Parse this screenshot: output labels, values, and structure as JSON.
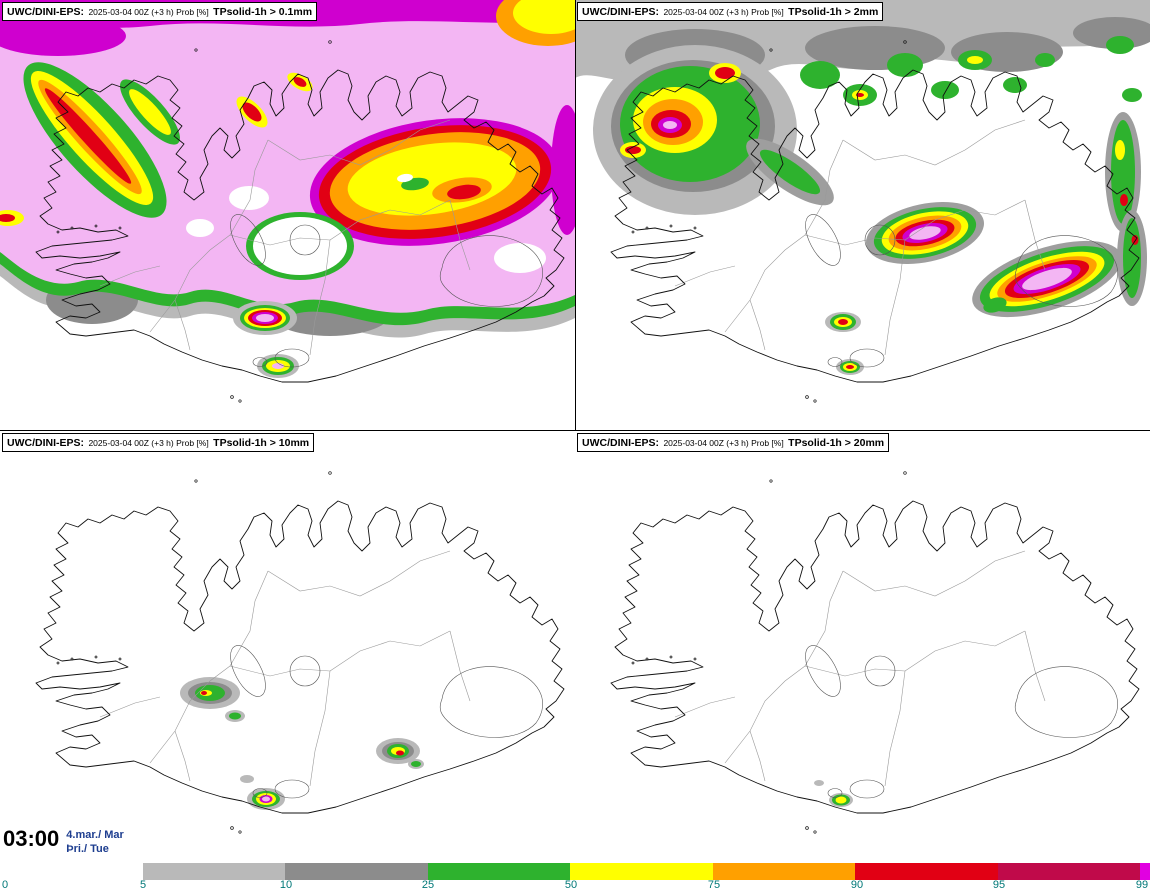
{
  "panels": [
    {
      "model": "UWC/DINI-EPS:",
      "run": "2025-03-04 00Z (+3 h) Prob [%]",
      "param": "TPsolid-1h > 0.1mm"
    },
    {
      "model": "UWC/DINI-EPS:",
      "run": "2025-03-04 00Z (+3 h) Prob [%]",
      "param": "TPsolid-1h > 2mm"
    },
    {
      "model": "UWC/DINI-EPS:",
      "run": "2025-03-04 00Z (+3 h) Prob [%]",
      "param": "TPsolid-1h > 10mm"
    },
    {
      "model": "UWC/DINI-EPS:",
      "run": "2025-03-04 00Z (+3 h) Prob [%]",
      "param": "TPsolid-1h > 20mm"
    }
  ],
  "footer": {
    "time": "03:00",
    "date_line1": "4.mar./ Mar",
    "date_line2": "Þri./ Tue"
  },
  "legend": {
    "unit": "Prob [%]",
    "ticks": [
      "0",
      "5",
      "10",
      "25",
      "50",
      "75",
      "90",
      "95",
      "99"
    ],
    "segments": [
      {
        "range": "5-10",
        "color": "#b9b9b9"
      },
      {
        "range": "10-25",
        "color": "#8c8c8c"
      },
      {
        "range": "25-50",
        "color": "#2eb22e"
      },
      {
        "range": "50-75",
        "color": "#ffff00"
      },
      {
        "range": "75-90",
        "color": "#ffa000"
      },
      {
        "range": "90-95",
        "color": "#e10014"
      },
      {
        "range": "95-99",
        "color": "#c00a4a"
      },
      {
        "range": ">99",
        "color": "#e100e1"
      }
    ]
  },
  "map_colors": {
    "pink": "#f3b6f3",
    "magenta": "#cf00cf",
    "red": "#e10014",
    "darkred": "#c00a4a",
    "orange": "#ffa000",
    "yellow": "#ffff00",
    "green": "#2eb22e",
    "gray": "#8c8c8c",
    "lightgray": "#b9b9b9",
    "gray2": "#9e9e9e",
    "white": "#ffffff"
  }
}
